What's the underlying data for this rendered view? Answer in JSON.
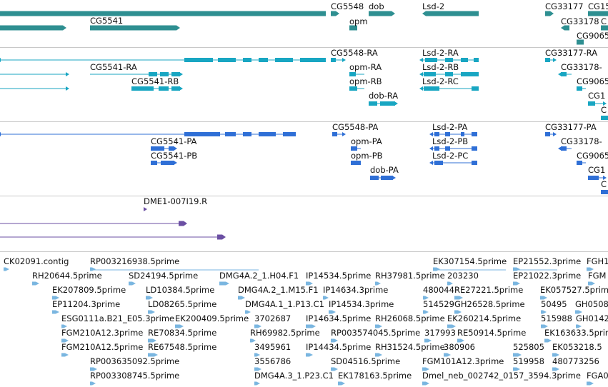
{
  "colors": {
    "gene": "#2e8f91",
    "transcript": "#18a6c2",
    "protein": "#2f6fd6",
    "clone": "#6b4fa3",
    "est": "#7ab6e0",
    "separator": "#c8c8c8"
  },
  "gene_track": {
    "labels": [
      "CG5541",
      "CG5548",
      "dob",
      "Lsd-2",
      "opm",
      "CG33177",
      "CG15",
      "CG33178",
      "C",
      "CG9065"
    ]
  },
  "transcript_track": {
    "labels": [
      "CG5548-RA",
      "Lsd-2-RA",
      "CG33177-RA",
      "CG5541-RA",
      "opm-RA",
      "Lsd-2-RB",
      "CG33178-",
      "CG5541-RB",
      "opm-RB",
      "Lsd-2-RC",
      "CG9065",
      "dob-RA",
      "CG1",
      "C"
    ]
  },
  "protein_track": {
    "labels": [
      "CG5548-PA",
      "Lsd-2-PA",
      "CG33177-PA",
      "CG5541-PA",
      "opm-PA",
      "Lsd-2-PB",
      "CG33178-",
      "CG5541-PB",
      "opm-PB",
      "Lsd-2-PC",
      "CG9065",
      "dob-PA",
      "CG1",
      "C"
    ]
  },
  "clone_track": {
    "labels": [
      "DME1-007I19.R"
    ]
  },
  "est_track": {
    "labels": [
      "CK02091.contig",
      "RP003216938.5prime",
      "EK307154.5prime",
      "EP21552.3prime",
      "FGH1",
      "RH20644.5prime",
      "SD24194.5prime",
      "DMG4A.2_1.H04.F1",
      "IP14534.5prime",
      "RH37981.5prime",
      "203230",
      "EP21022.3prime",
      "FGM",
      "EK207809.5prime",
      "LD10384.5prime",
      "DMG4A.2_1.M15.F1",
      "IP14634.3prime",
      "480044",
      "RE27221.5prime",
      "EK057527.5prime",
      "EP11204.3prime",
      "LD08265.5prime",
      "DMG4A.1_1.P13.C1",
      "IP14534.3prime",
      "514529",
      "GH26528.5prime",
      "50495",
      "GH0508",
      "ESG0111a.B21_E05.3prime",
      "EK200409.5prime",
      "3702687",
      "IP14634.5prime",
      "RH26068.5prime",
      "EK260214.5prime",
      "515988",
      "GH0142",
      "FGM210A12.3prime",
      "RE70834.5prime",
      "RH69982.5prime",
      "RP003574045.5prime",
      "317993",
      "RE50914.5prime",
      "EK163633.5prime",
      "FGM210A12.5prime",
      "RE67548.5prime",
      "3495961",
      "IP14434.5prime",
      "RH31524.5prime",
      "380906",
      "525805",
      "EK053218.5",
      "RP003635092.5prime",
      "3556786",
      "SD04516.5prime",
      "FGM101A12.3prime",
      "519958",
      "480773256",
      "RP003308745.5prime",
      "DMG4A.3_1.P23.C1",
      "EK178163.5prime",
      "Dmel_neb_002742_0157_3594.3prime",
      "FGA0"
    ]
  }
}
